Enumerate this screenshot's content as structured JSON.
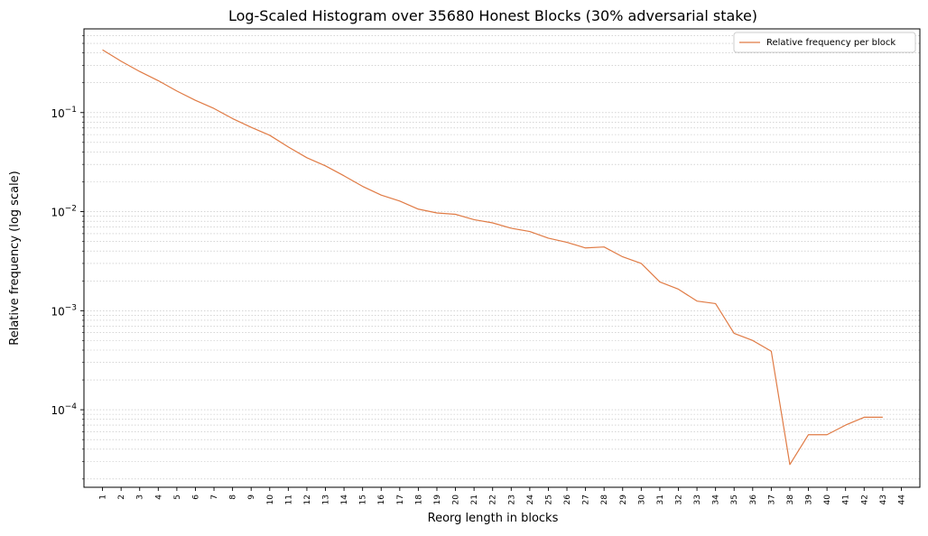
{
  "chart_data": {
    "type": "line",
    "title": "Log-Scaled Histogram over 35680 Honest Blocks (30% adversarial stake)",
    "xlabel": "Reorg length in blocks",
    "ylabel": "Relative frequency (log scale)",
    "y_scale": "log",
    "ylim": [
      1.65e-05,
      0.7
    ],
    "x_ticks": [
      1,
      2,
      3,
      4,
      5,
      6,
      7,
      8,
      9,
      10,
      11,
      12,
      13,
      14,
      15,
      16,
      17,
      18,
      19,
      20,
      21,
      22,
      23,
      24,
      25,
      26,
      27,
      28,
      29,
      30,
      31,
      32,
      33,
      34,
      35,
      36,
      37,
      38,
      39,
      40,
      41,
      42,
      43,
      44
    ],
    "y_tick_labels": [
      {
        "value": 0.1,
        "base": "10",
        "exp": "−1"
      },
      {
        "value": 0.01,
        "base": "10",
        "exp": "−2"
      },
      {
        "value": 0.001,
        "base": "10",
        "exp": "−3"
      },
      {
        "value": 0.0001,
        "base": "10",
        "exp": "−4"
      }
    ],
    "grid": "y-minor-dotted",
    "legend_position": "top-right",
    "series": [
      {
        "name": "Relative frequency per block",
        "color": "#e07b45",
        "x": [
          1,
          2,
          3,
          4,
          5,
          6,
          7,
          8,
          9,
          10,
          11,
          12,
          13,
          14,
          15,
          16,
          17,
          18,
          19,
          20,
          21,
          22,
          23,
          24,
          25,
          26,
          27,
          28,
          29,
          30,
          31,
          32,
          33,
          34,
          35,
          36,
          37,
          38,
          39,
          40,
          41,
          42,
          43
        ],
        "values": [
          0.43,
          0.33,
          0.26,
          0.21,
          0.165,
          0.133,
          0.11,
          0.087,
          0.071,
          0.059,
          0.045,
          0.035,
          0.029,
          0.023,
          0.018,
          0.0147,
          0.0128,
          0.0106,
          0.0097,
          0.0094,
          0.0083,
          0.0077,
          0.0068,
          0.0063,
          0.0054,
          0.0049,
          0.0043,
          0.0044,
          0.0035,
          0.003,
          0.00195,
          0.00165,
          0.00125,
          0.00118,
          0.00059,
          0.0005,
          0.00039,
          2.8e-05,
          5.6e-05,
          5.6e-05,
          7e-05,
          8.4e-05,
          8.4e-05
        ]
      }
    ]
  }
}
